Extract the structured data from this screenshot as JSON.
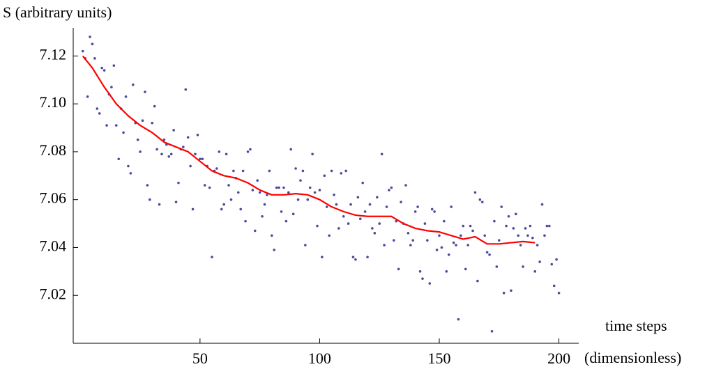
{
  "chart_data": {
    "type": "scatter",
    "ylabel": "S (arbitrary units)",
    "xlabel": "time steps",
    "xlabel_unit": "(dimensionless)",
    "xlim": [
      -3,
      201
    ],
    "ylim": [
      7.0,
      7.13
    ],
    "xticks": [
      50,
      100,
      150,
      200
    ],
    "yticks": [
      7.02,
      7.04,
      7.06,
      7.08,
      {
        "value": 7.1,
        "label": "7.10"
      },
      7.12
    ],
    "series": [
      {
        "type": "scatter",
        "color": "#4b4b9b",
        "x": [
          1,
          2,
          3,
          4,
          5,
          6,
          7,
          8,
          9,
          10,
          11,
          12,
          13,
          14,
          15,
          16,
          17,
          18,
          19,
          20,
          21,
          22,
          23,
          24,
          25,
          26,
          27,
          28,
          29,
          30,
          31,
          32,
          33,
          34,
          35,
          36,
          37,
          38,
          39,
          40,
          41,
          42,
          43,
          44,
          45,
          46,
          47,
          48,
          49,
          50,
          51,
          52,
          53,
          54,
          55,
          56,
          57,
          58,
          59,
          60,
          61,
          62,
          63,
          64,
          65,
          66,
          67,
          68,
          69,
          70,
          71,
          72,
          73,
          74,
          75,
          76,
          77,
          78,
          79,
          80,
          81,
          82,
          83,
          84,
          85,
          86,
          87,
          88,
          89,
          90,
          91,
          92,
          93,
          94,
          95,
          96,
          97,
          98,
          99,
          100,
          101,
          102,
          103,
          104,
          105,
          106,
          107,
          108,
          109,
          110,
          111,
          112,
          113,
          114,
          115,
          116,
          117,
          118,
          119,
          120,
          121,
          122,
          123,
          124,
          125,
          126,
          127,
          128,
          129,
          130,
          131,
          132,
          133,
          134,
          135,
          136,
          137,
          138,
          139,
          140,
          141,
          142,
          143,
          144,
          145,
          146,
          147,
          148,
          149,
          150,
          151,
          152,
          153,
          154,
          155,
          156,
          157,
          158,
          159,
          160,
          161,
          162,
          163,
          164,
          165,
          166,
          167,
          168,
          169,
          170,
          171,
          172,
          173,
          174,
          175,
          176,
          177,
          178,
          179,
          180,
          181,
          182,
          183,
          184,
          185,
          186,
          187,
          188,
          189,
          190,
          191,
          192,
          193,
          194,
          195,
          196,
          197,
          198,
          199,
          200
        ],
        "values": [
          7.122,
          7.119,
          7.103,
          7.128,
          7.125,
          7.119,
          7.098,
          7.096,
          7.115,
          7.114,
          7.091,
          7.104,
          7.107,
          7.116,
          7.091,
          7.077,
          7.098,
          7.088,
          7.103,
          7.074,
          7.071,
          7.108,
          7.092,
          7.085,
          7.08,
          7.093,
          7.105,
          7.066,
          7.06,
          7.092,
          7.099,
          7.081,
          7.058,
          7.079,
          7.085,
          7.083,
          7.078,
          7.079,
          7.089,
          7.059,
          7.067,
          7.081,
          7.082,
          7.106,
          7.086,
          7.074,
          7.056,
          7.079,
          7.087,
          7.077,
          7.077,
          7.066,
          7.074,
          7.065,
          7.036,
          7.072,
          7.073,
          7.08,
          7.056,
          7.058,
          7.079,
          7.066,
          7.06,
          7.072,
          7.069,
          7.063,
          7.056,
          7.072,
          7.051,
          7.08,
          7.081,
          7.064,
          7.047,
          7.068,
          7.063,
          7.053,
          7.058,
          7.062,
          7.072,
          7.045,
          7.039,
          7.065,
          7.065,
          7.055,
          7.065,
          7.051,
          7.063,
          7.081,
          7.054,
          7.073,
          7.06,
          7.068,
          7.072,
          7.041,
          7.06,
          7.065,
          7.079,
          7.063,
          7.049,
          7.064,
          7.036,
          7.07,
          7.057,
          7.045,
          7.072,
          7.062,
          7.058,
          7.048,
          7.071,
          7.053,
          7.072,
          7.05,
          7.058,
          7.036,
          7.035,
          7.061,
          7.052,
          7.067,
          7.055,
          7.036,
          7.058,
          7.048,
          7.046,
          7.061,
          7.05,
          7.079,
          7.041,
          7.057,
          7.064,
          7.065,
          7.043,
          7.051,
          7.031,
          7.059,
          7.05,
          7.066,
          7.046,
          7.041,
          7.043,
          7.055,
          7.057,
          7.03,
          7.027,
          7.05,
          7.043,
          7.025,
          7.056,
          7.055,
          7.039,
          7.045,
          7.04,
          7.051,
          7.03,
          7.037,
          7.057,
          7.042,
          7.041,
          7.01,
          7.045,
          7.049,
          7.031,
          7.041,
          7.049,
          7.047,
          7.063,
          7.026,
          7.06,
          7.059,
          7.045,
          7.038,
          7.037,
          7.005,
          7.051,
          7.032,
          7.043,
          7.057,
          7.021,
          7.049,
          7.053,
          7.022,
          7.048,
          7.054,
          7.045,
          7.041,
          7.032,
          7.048,
          7.045,
          7.049,
          7.044,
          7.03,
          7.041,
          7.034,
          7.058,
          7.045,
          7.049,
          7.049,
          7.033,
          7.024,
          7.035,
          7.021
        ]
      },
      {
        "type": "line",
        "color": "#ff0000",
        "x": [
          1,
          5,
          10,
          15,
          20,
          25,
          30,
          35,
          40,
          45,
          50,
          55,
          60,
          65,
          70,
          75,
          80,
          85,
          90,
          95,
          100,
          105,
          110,
          115,
          120,
          125,
          130,
          135,
          140,
          145,
          150,
          155,
          160,
          165,
          170,
          175,
          180,
          185,
          190
        ],
        "values": [
          7.12,
          7.115,
          7.107,
          7.1,
          7.095,
          7.091,
          7.088,
          7.084,
          7.082,
          7.08,
          7.076,
          7.072,
          7.07,
          7.069,
          7.067,
          7.064,
          7.062,
          7.062,
          7.0625,
          7.062,
          7.06,
          7.057,
          7.055,
          7.0535,
          7.053,
          7.053,
          7.053,
          7.05,
          7.048,
          7.047,
          7.0465,
          7.045,
          7.0435,
          7.0445,
          7.0415,
          7.0415,
          7.042,
          7.0425,
          7.042
        ]
      }
    ]
  }
}
